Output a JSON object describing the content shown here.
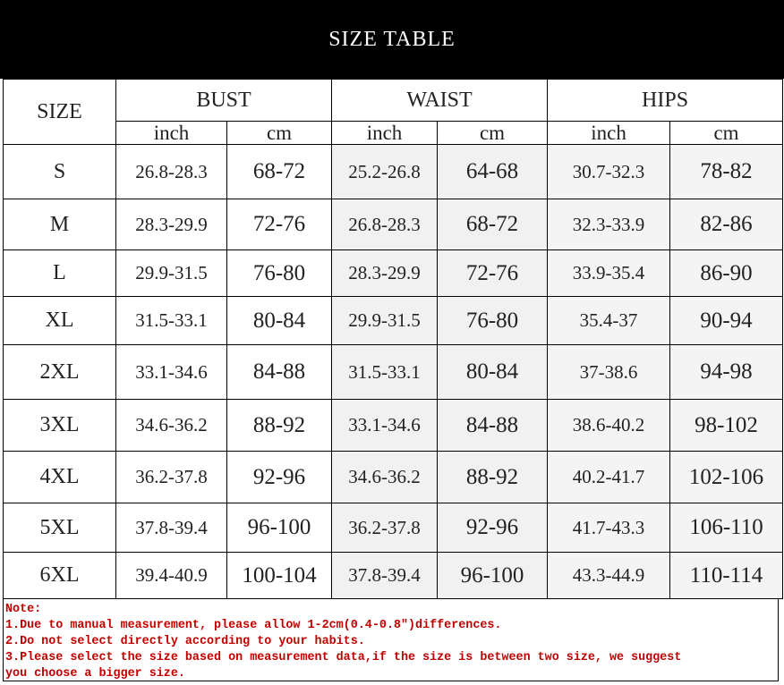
{
  "title": "SIZE TABLE",
  "headers": {
    "size": "SIZE",
    "groups": [
      "BUST",
      "WAIST",
      "HIPS"
    ],
    "units": [
      "inch",
      "cm",
      "inch",
      "cm",
      "inch",
      "cm"
    ]
  },
  "rows": [
    {
      "size": "S",
      "bust_inch": "26.8-28.3",
      "bust_cm": "68-72",
      "waist_inch": "25.2-26.8",
      "waist_cm": "64-68",
      "hips_inch": "30.7-32.3",
      "hips_cm": "78-82"
    },
    {
      "size": "M",
      "bust_inch": "28.3-29.9",
      "bust_cm": "72-76",
      "waist_inch": "26.8-28.3",
      "waist_cm": "68-72",
      "hips_inch": "32.3-33.9",
      "hips_cm": "82-86"
    },
    {
      "size": "L",
      "bust_inch": "29.9-31.5",
      "bust_cm": "76-80",
      "waist_inch": "28.3-29.9",
      "waist_cm": "72-76",
      "hips_inch": "33.9-35.4",
      "hips_cm": "86-90"
    },
    {
      "size": "XL",
      "bust_inch": "31.5-33.1",
      "bust_cm": "80-84",
      "waist_inch": "29.9-31.5",
      "waist_cm": "76-80",
      "hips_inch": "35.4-37",
      "hips_cm": "90-94"
    },
    {
      "size": "2XL",
      "bust_inch": "33.1-34.6",
      "bust_cm": "84-88",
      "waist_inch": "31.5-33.1",
      "waist_cm": "80-84",
      "hips_inch": "37-38.6",
      "hips_cm": "94-98"
    },
    {
      "size": "3XL",
      "bust_inch": "34.6-36.2",
      "bust_cm": "88-92",
      "waist_inch": "33.1-34.6",
      "waist_cm": "84-88",
      "hips_inch": "38.6-40.2",
      "hips_cm": "98-102"
    },
    {
      "size": "4XL",
      "bust_inch": "36.2-37.8",
      "bust_cm": "92-96",
      "waist_inch": "34.6-36.2",
      "waist_cm": "88-92",
      "hips_inch": "40.2-41.7",
      "hips_cm": "102-106"
    },
    {
      "size": "5XL",
      "bust_inch": "37.8-39.4",
      "bust_cm": "96-100",
      "waist_inch": "36.2-37.8",
      "waist_cm": "92-96",
      "hips_inch": "41.7-43.3",
      "hips_cm": "106-110"
    },
    {
      "size": "6XL",
      "bust_inch": "39.4-40.9",
      "bust_cm": "100-104",
      "waist_inch": "37.8-39.4",
      "waist_cm": "96-100",
      "hips_inch": "43.3-44.9",
      "hips_cm": "110-114"
    }
  ],
  "notes": [
    "Note:",
    "1.Due to manual measurement, please allow 1-2cm(0.4-0.8″)differences.",
    "2.Do not select directly according to your habits.",
    "3.Please select the size based on measurement data,if the size is between two size, we suggest",
    "you choose a bigger size."
  ],
  "colors": {
    "title_bg": "#000000",
    "note_text": "#c00000",
    "shaded_cell": "#f1f1f1"
  }
}
